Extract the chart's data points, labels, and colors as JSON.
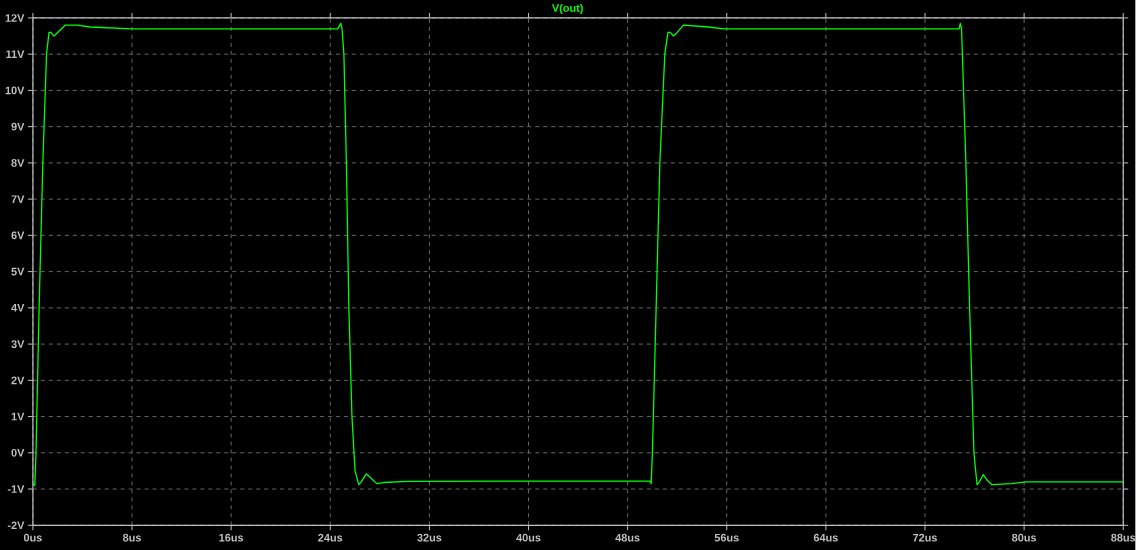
{
  "chart_data": {
    "type": "line",
    "legend": "top",
    "grid": true,
    "xlim": [
      0,
      88
    ],
    "ylim": [
      -2,
      12
    ],
    "xticks": [
      {
        "value": 0,
        "label": "0us"
      },
      {
        "value": 8,
        "label": "8us"
      },
      {
        "value": 16,
        "label": "16us"
      },
      {
        "value": 24,
        "label": "24us"
      },
      {
        "value": 32,
        "label": "32us"
      },
      {
        "value": 40,
        "label": "40us"
      },
      {
        "value": 48,
        "label": "48us"
      },
      {
        "value": 56,
        "label": "56us"
      },
      {
        "value": 64,
        "label": "64us"
      },
      {
        "value": 72,
        "label": "72us"
      },
      {
        "value": 80,
        "label": "80us"
      },
      {
        "value": 88,
        "label": "88us"
      }
    ],
    "yticks": [
      {
        "value": -2,
        "label": "-2V"
      },
      {
        "value": -1,
        "label": "-1V"
      },
      {
        "value": 0,
        "label": "0V"
      },
      {
        "value": 1,
        "label": "1V"
      },
      {
        "value": 2,
        "label": "2V"
      },
      {
        "value": 3,
        "label": "3V"
      },
      {
        "value": 4,
        "label": "4V"
      },
      {
        "value": 5,
        "label": "5V"
      },
      {
        "value": 6,
        "label": "6V"
      },
      {
        "value": 7,
        "label": "7V"
      },
      {
        "value": 8,
        "label": "8V"
      },
      {
        "value": 9,
        "label": "9V"
      },
      {
        "value": 10,
        "label": "10V"
      },
      {
        "value": 11,
        "label": "11V"
      },
      {
        "value": 12,
        "label": "12V"
      }
    ],
    "series": [
      {
        "name": "V(out)",
        "color": "#00ff00",
        "x": [
          0,
          0.15,
          0.25,
          0.5,
          0.8,
          1.1,
          1.3,
          1.45,
          1.7,
          2.0,
          2.6,
          3.6,
          4.6,
          8,
          16,
          24.6,
          24.85,
          24.95,
          25.1,
          25.3,
          25.5,
          25.75,
          26.0,
          26.3,
          26.5,
          26.9,
          27.3,
          27.75,
          28.3,
          30.2,
          40,
          49.8,
          49.9,
          50.0,
          50.3,
          50.6,
          51.0,
          51.25,
          51.45,
          51.7,
          52.0,
          52.5,
          54.5,
          55.8,
          64,
          74.75,
          74.85,
          74.95,
          75.3,
          75.6,
          75.95,
          76.2,
          76.4,
          76.7,
          77.0,
          77.4,
          79,
          80.2,
          88
        ],
        "values": [
          -0.85,
          -0.9,
          0,
          4,
          8,
          11,
          11.6,
          11.6,
          11.5,
          11.6,
          11.8,
          11.8,
          11.75,
          11.7,
          11.7,
          11.7,
          11.85,
          11.7,
          11,
          8,
          4,
          1,
          -0.5,
          -0.88,
          -0.8,
          -0.58,
          -0.7,
          -0.85,
          -0.82,
          -0.79,
          -0.78,
          -0.78,
          -0.85,
          0,
          4,
          8,
          11,
          11.6,
          11.6,
          11.5,
          11.6,
          11.8,
          11.75,
          11.7,
          11.7,
          11.7,
          11.85,
          11.7,
          8,
          4,
          0,
          -0.88,
          -0.8,
          -0.6,
          -0.75,
          -0.88,
          -0.85,
          -0.8,
          -0.8
        ]
      }
    ]
  }
}
